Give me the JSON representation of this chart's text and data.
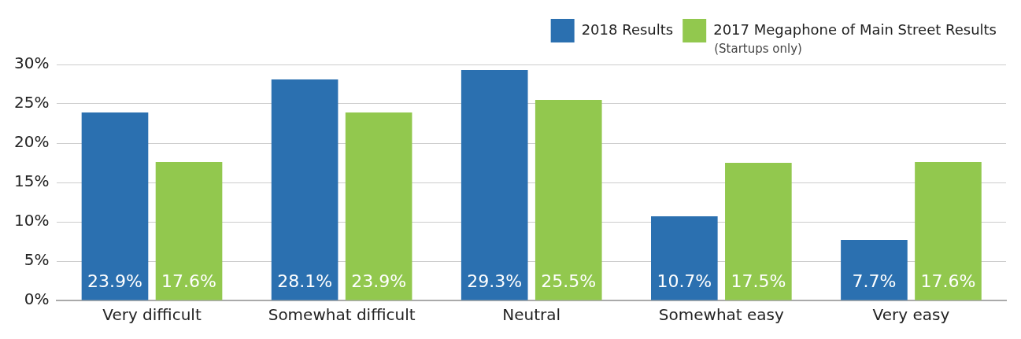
{
  "chart_data": {
    "type": "bar",
    "categories": [
      "Very difficult",
      "Somewhat difficult",
      "Neutral",
      "Somewhat easy",
      "Very easy"
    ],
    "series": [
      {
        "name": "2018 Results",
        "color": "#2b70b0",
        "values": [
          23.9,
          28.1,
          29.3,
          10.7,
          7.7
        ],
        "value_labels": [
          "23.9%",
          "28.1%",
          "29.3%",
          "10.7%",
          "7.7%"
        ]
      },
      {
        "name": "2017 Megaphone of Main Street Results",
        "color": "#92c84e",
        "values": [
          17.6,
          23.9,
          25.5,
          17.5,
          17.6
        ],
        "value_labels": [
          "17.6%",
          "23.9%",
          "25.5%",
          "17.5%",
          "17.6%"
        ]
      }
    ],
    "ylim": [
      0,
      30
    ],
    "yticks": [
      {
        "value": 0,
        "label": "0%"
      },
      {
        "value": 5,
        "label": "5%"
      },
      {
        "value": 10,
        "label": "10%"
      },
      {
        "value": 15,
        "label": "15%"
      },
      {
        "value": 20,
        "label": "20%"
      },
      {
        "value": 25,
        "label": "25%"
      },
      {
        "value": 30,
        "label": "30%"
      }
    ],
    "grid": "y",
    "legend": "top right",
    "annotations": [
      "(Startups only)"
    ]
  }
}
